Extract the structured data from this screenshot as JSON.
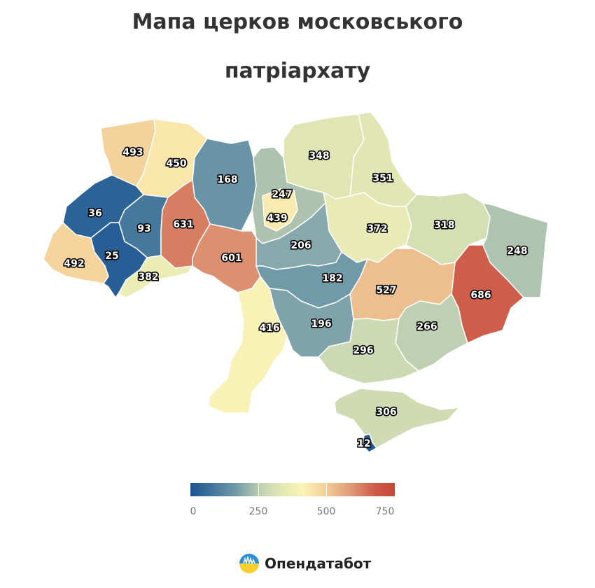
{
  "title": {
    "line1": "Мапа церков московського",
    "line2": "патріархату"
  },
  "map_data": {
    "type": "choropleth",
    "region": "Ukraine",
    "regions": [
      {
        "id": "volyn",
        "value": 493
      },
      {
        "id": "rivne",
        "value": 450
      },
      {
        "id": "zhytomyr",
        "value": 168
      },
      {
        "id": "kyiv-oblast",
        "value": 247
      },
      {
        "id": "chernihiv",
        "value": 348
      },
      {
        "id": "sumy",
        "value": 351
      },
      {
        "id": "lviv",
        "value": 36
      },
      {
        "id": "ternopil",
        "value": 93
      },
      {
        "id": "khmelnytskyi",
        "value": 631
      },
      {
        "id": "kyiv-city",
        "value": 439
      },
      {
        "id": "poltava",
        "value": 372
      },
      {
        "id": "kharkiv",
        "value": 318
      },
      {
        "id": "luhansk",
        "value": 248
      },
      {
        "id": "zakarpattia",
        "value": 492
      },
      {
        "id": "ivano-frankivsk",
        "value": 25
      },
      {
        "id": "vinnytsia",
        "value": 601
      },
      {
        "id": "cherkasy",
        "value": 206
      },
      {
        "id": "chernivtsi",
        "value": 382
      },
      {
        "id": "kirovohrad",
        "value": 182
      },
      {
        "id": "dnipropetrovsk",
        "value": 527
      },
      {
        "id": "donetsk",
        "value": 686
      },
      {
        "id": "odesa",
        "value": 416
      },
      {
        "id": "mykolaiv",
        "value": 196
      },
      {
        "id": "zaporizhzhia",
        "value": 266
      },
      {
        "id": "kherson",
        "value": 296
      },
      {
        "id": "crimea",
        "value": 306
      },
      {
        "id": "sevastopol",
        "value": 12
      }
    ]
  },
  "legend": {
    "ticks": [
      "0",
      "250",
      "500",
      "750"
    ],
    "min": 0,
    "max": 780
  },
  "brand": {
    "name": "Опендатабот"
  }
}
